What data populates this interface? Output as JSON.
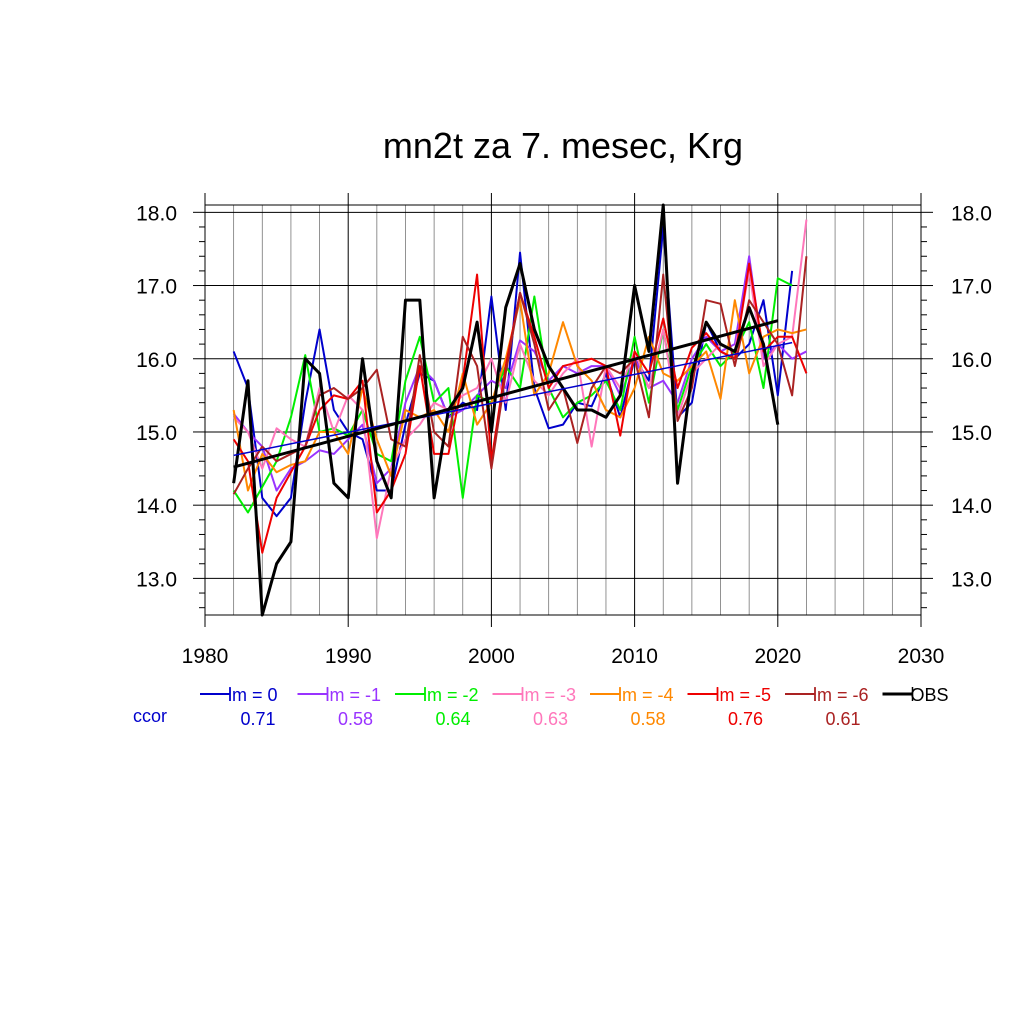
{
  "chart_data": {
    "type": "line",
    "title": "mn2t za 7. mesec, Krg",
    "xlabel": "",
    "ylabel": "",
    "xlim": [
      1980,
      2030
    ],
    "ylim": [
      12.5,
      18.1
    ],
    "x_ticks": [
      1980,
      1990,
      2000,
      2010,
      2020,
      2030
    ],
    "x_tick_labels": [
      "1980",
      "1990",
      "2000",
      "2010",
      "2020",
      "2030"
    ],
    "y_ticks": [
      13,
      14,
      15,
      16,
      17,
      18
    ],
    "y_tick_labels": [
      "13.0",
      "14.0",
      "15.0",
      "16.0",
      "17.0",
      "18.0"
    ],
    "grid": true,
    "legend_position": "bottom",
    "ccor_label": "ccor",
    "series": [
      {
        "name": "lm = 0",
        "color": "#0000cc",
        "ccor": "0.71",
        "x_start": 1982,
        "values": [
          16.1,
          15.6,
          14.1,
          13.85,
          14.1,
          15.4,
          16.4,
          15.3,
          15.0,
          14.9,
          14.2,
          14.2,
          15.1,
          15.8,
          15.7,
          15.2,
          15.4,
          15.3,
          16.85,
          15.3,
          17.45,
          15.6,
          15.05,
          15.1,
          15.4,
          15.35,
          15.8,
          15.2,
          16.0,
          15.7,
          17.8,
          15.2,
          15.4,
          16.5,
          16.1,
          16.0,
          16.2,
          16.8,
          15.5,
          17.2
        ],
        "trend": [
          14.68,
          16.22
        ]
      },
      {
        "name": "lm = -1",
        "color": "#9933ff",
        "ccor": "0.58",
        "x_start": 1982,
        "values": [
          15.25,
          15.0,
          14.8,
          14.2,
          14.5,
          14.6,
          14.75,
          14.7,
          14.9,
          15.1,
          14.3,
          14.5,
          15.4,
          15.9,
          15.7,
          15.2,
          15.3,
          15.5,
          15.7,
          15.6,
          16.25,
          16.1,
          15.7,
          15.9,
          15.8,
          15.9,
          15.9,
          15.5,
          16.0,
          15.6,
          15.7,
          15.4,
          16.0,
          16.3,
          16.1,
          16.2,
          17.4,
          16.0,
          16.2,
          16.0,
          16.1
        ]
      },
      {
        "name": "lm = -2",
        "color": "#00ee00",
        "ccor": "0.64",
        "x_start": 1982,
        "values": [
          14.2,
          13.9,
          14.25,
          14.6,
          15.2,
          16.05,
          15.0,
          15.05,
          14.95,
          15.3,
          14.7,
          14.6,
          15.7,
          16.3,
          15.4,
          15.6,
          14.1,
          15.5,
          15.4,
          15.9,
          15.6,
          16.85,
          15.6,
          15.2,
          15.4,
          15.5,
          15.7,
          15.3,
          16.3,
          15.4,
          16.4,
          15.3,
          15.9,
          16.2,
          15.9,
          16.1,
          16.5,
          15.6,
          17.1,
          17.0
        ]
      },
      {
        "name": "lm = -3",
        "color": "#ff77bb",
        "ccor": "0.63",
        "x_start": 1982,
        "values": [
          15.2,
          15.0,
          14.5,
          15.05,
          14.9,
          14.8,
          15.6,
          15.0,
          15.5,
          15.3,
          13.55,
          14.5,
          14.9,
          15.1,
          15.4,
          15.3,
          15.5,
          15.6,
          16.0,
          15.4,
          16.2,
          15.7,
          15.5,
          15.8,
          16.0,
          14.8,
          15.9,
          15.6,
          16.1,
          15.6,
          16.4,
          15.2,
          15.8,
          16.0,
          16.2,
          16.1,
          17.2,
          15.9,
          16.2,
          16.3,
          17.9
        ]
      },
      {
        "name": "lm = -4",
        "color": "#ff8800",
        "ccor": "0.58",
        "x_start": 1982,
        "values": [
          15.3,
          14.2,
          14.7,
          14.45,
          14.55,
          14.6,
          15.0,
          15.0,
          14.7,
          15.6,
          14.9,
          14.4,
          15.3,
          15.2,
          15.3,
          15.0,
          15.8,
          15.1,
          15.4,
          16.0,
          16.8,
          15.5,
          15.8,
          16.5,
          15.9,
          15.7,
          15.3,
          15.2,
          15.6,
          16.3,
          15.8,
          15.7,
          15.9,
          16.1,
          15.45,
          16.8,
          15.8,
          16.3,
          16.4,
          16.35,
          16.4
        ]
      },
      {
        "name": "lm = -5",
        "color": "#ee0000",
        "ccor": "0.76",
        "x_start": 1982,
        "values": [
          14.9,
          14.6,
          13.35,
          14.1,
          14.45,
          14.8,
          15.3,
          15.5,
          15.45,
          15.7,
          13.9,
          14.2,
          14.7,
          15.9,
          14.7,
          14.7,
          15.7,
          17.15,
          14.6,
          15.9,
          16.9,
          16.3,
          15.6,
          15.9,
          15.95,
          16.0,
          15.9,
          14.95,
          16.1,
          15.8,
          16.55,
          15.6,
          16.15,
          16.35,
          16.1,
          16.0,
          17.3,
          16.1,
          16.3,
          16.3,
          15.8
        ]
      },
      {
        "name": "lm = -6",
        "color": "#aa2222",
        "ccor": "0.61",
        "x_start": 1982,
        "values": [
          14.15,
          14.5,
          14.8,
          14.6,
          14.7,
          14.8,
          15.5,
          15.6,
          15.45,
          15.6,
          15.85,
          14.9,
          14.8,
          16.05,
          15.0,
          14.8,
          16.3,
          15.9,
          14.5,
          15.8,
          16.9,
          16.2,
          15.3,
          15.6,
          14.85,
          15.6,
          15.9,
          15.8,
          16.0,
          15.2,
          17.15,
          15.15,
          15.6,
          16.8,
          16.75,
          15.9,
          16.8,
          16.5,
          16.2,
          15.5,
          17.4
        ]
      },
      {
        "name": "OBS",
        "color": "#000000",
        "ccor": "",
        "x_start": 1982,
        "values": [
          14.3,
          15.7,
          12.5,
          13.2,
          13.5,
          16.0,
          15.8,
          14.3,
          14.1,
          16.0,
          14.6,
          14.1,
          16.8,
          16.8,
          14.1,
          15.3,
          15.6,
          16.5,
          15.0,
          16.7,
          17.3,
          16.4,
          15.9,
          15.6,
          15.3,
          15.3,
          15.2,
          15.5,
          17.0,
          16.1,
          18.1,
          14.3,
          15.8,
          16.5,
          16.2,
          16.1,
          16.7,
          16.2,
          15.1
        ],
        "trend": [
          14.52,
          16.52
        ]
      }
    ]
  }
}
